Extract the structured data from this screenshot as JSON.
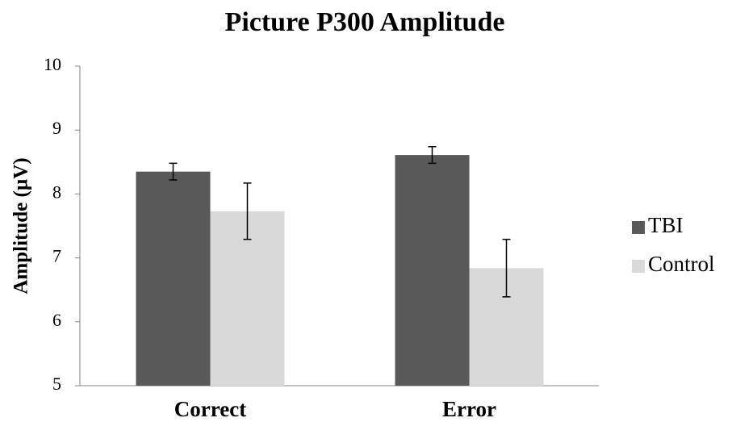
{
  "chart_data": {
    "type": "bar",
    "title": "Picture P300 Amplitude",
    "y_label": "Amplitude (µV)",
    "categories": [
      "Correct",
      "Error"
    ],
    "series": [
      {
        "name": "TBI",
        "color": "#595959",
        "values": [
          8.35,
          8.61
        ],
        "errors": [
          0.13,
          0.13
        ]
      },
      {
        "name": "Control",
        "color": "#d9d9d9",
        "values": [
          7.73,
          6.84
        ],
        "errors": [
          0.44,
          0.45
        ]
      }
    ],
    "ylim": [
      5,
      10
    ],
    "yticks": [
      5,
      6,
      7,
      8,
      9,
      10
    ],
    "grid": false,
    "legend": "right"
  }
}
